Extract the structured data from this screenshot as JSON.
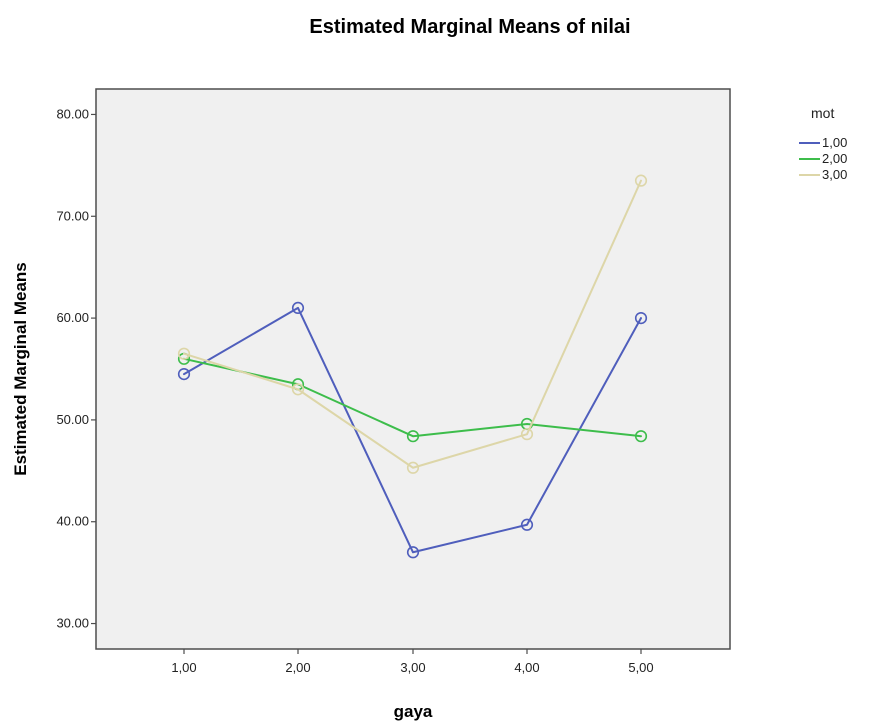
{
  "chart_data": {
    "type": "line",
    "title": "Estimated Marginal Means of nilai",
    "xlabel": "gaya",
    "ylabel": "Estimated Marginal Means",
    "categories": [
      "1,00",
      "2,00",
      "3,00",
      "4,00",
      "5,00"
    ],
    "ylim": [
      27.5,
      82.5
    ],
    "y_ticks": [
      30,
      40,
      50,
      60,
      70,
      80
    ],
    "y_tick_labels": [
      "30.00",
      "40.00",
      "50.00",
      "60.00",
      "70.00",
      "80.00"
    ],
    "grid": false,
    "legend_title": "mot",
    "legend_position": "top-right",
    "series": [
      {
        "name": "1,00",
        "color": "#4f5ebc",
        "values": [
          54.5,
          61.0,
          37.0,
          39.7,
          60.0
        ]
      },
      {
        "name": "2,00",
        "color": "#3dbd4b",
        "values": [
          56.0,
          53.5,
          48.4,
          49.6,
          48.4
        ]
      },
      {
        "name": "3,00",
        "color": "#ddd6a8",
        "values": [
          56.5,
          53.0,
          45.3,
          48.6,
          73.5
        ]
      }
    ],
    "colors": {
      "plot_background": "#f0f0f0",
      "axis": "#4d4d4d"
    }
  }
}
